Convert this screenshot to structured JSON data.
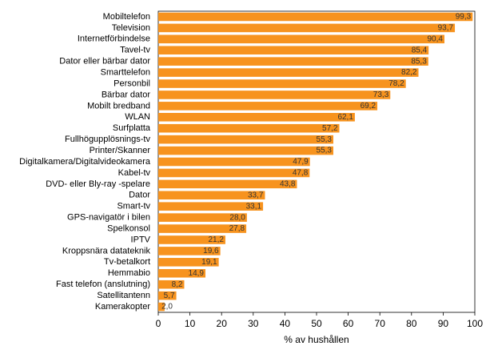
{
  "chart_data": {
    "type": "bar",
    "orientation": "horizontal",
    "x_label": "% av hushållen",
    "categories": [
      "Mobiltelefon",
      "Television",
      "Internetförbindelse",
      "Tavel-tv",
      "Dator eller bärbar dator",
      "Smarttelefon",
      "Personbil",
      "Bärbar dator",
      "Mobilt bredband",
      "WLAN",
      "Surfplatta",
      "Fullhögupplösnings-tv",
      "Printer/Skanner",
      "Digitalkamera/Digitalvideokamera",
      "Kabel-tv",
      "DVD- eller Bly-ray -spelare",
      "Dator",
      "Smart-tv",
      "GPS-navigatör i bilen",
      "Spelkonsol",
      "IPTV",
      "Kroppsnära datateknik",
      "Tv-betalkort",
      "Hemmabio",
      "Fast telefon (anslutning)",
      "Satellitantenn",
      "Kamerakopter"
    ],
    "values": [
      99.3,
      93.7,
      90.4,
      85.4,
      85.3,
      82.2,
      78.2,
      73.3,
      69.2,
      62.1,
      57.2,
      55.3,
      55.3,
      47.9,
      47.8,
      43.8,
      33.7,
      33.1,
      28.0,
      27.8,
      21.2,
      19.6,
      19.1,
      14.9,
      8.2,
      5.7,
      2.0
    ],
    "value_labels": [
      "99,3",
      "93,7",
      "90,4",
      "85,4",
      "85,3",
      "82,2",
      "78,2",
      "73,3",
      "69,2",
      "62,1",
      "57,2",
      "55,3",
      "55,3",
      "47,9",
      "47,8",
      "43,8",
      "33,7",
      "33,1",
      "28,0",
      "27,8",
      "21,2",
      "19,6",
      "19,1",
      "14,9",
      "8,2",
      "5,7",
      "2,0"
    ],
    "color": "#f7931e",
    "xlim": [
      0,
      100
    ],
    "xticks": [
      0,
      10,
      20,
      30,
      40,
      50,
      60,
      70,
      80,
      90,
      100
    ],
    "grid": false
  }
}
